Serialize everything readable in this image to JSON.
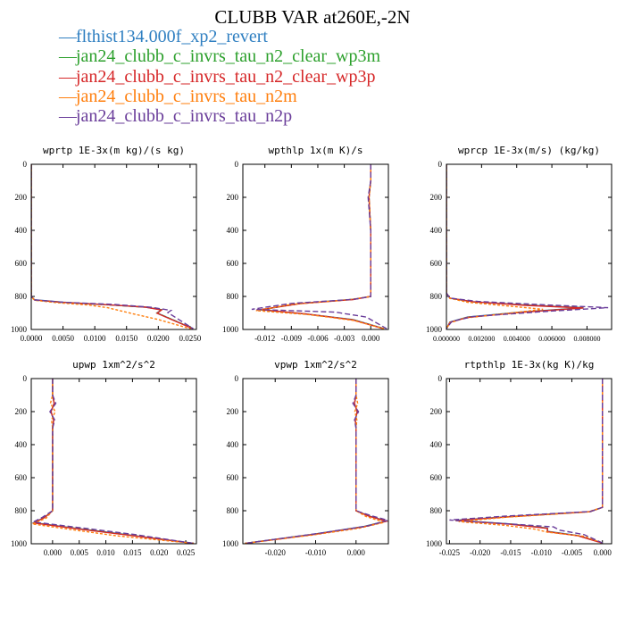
{
  "page": {
    "title": "CLUBB VAR at260E,-2N"
  },
  "legend": [
    {
      "label": "flthist134.000f_xp2_revert",
      "color": "#2f7fc1",
      "dash": "—"
    },
    {
      "label": "jan24_clubb_c_invrs_tau_n2_clear_wp3m",
      "color": "#2ca02c",
      "dash": "—"
    },
    {
      "label": "jan24_clubb_c_invrs_tau_n2_clear_wp3p",
      "color": "#d62728",
      "dash": "—"
    },
    {
      "label": "jan24_clubb_c_invrs_tau_n2m",
      "color": "#ff7f0e",
      "dash": "—"
    },
    {
      "label": "jan24_clubb_c_invrs_tau_n2p",
      "color": "#6a3d9a",
      "dash": "—"
    }
  ],
  "chart_data": [
    {
      "type": "line",
      "title": "wprtp   1E-3x(m kg)/(s kg)",
      "xlim": [
        0,
        0.026
      ],
      "ylim": [
        1000,
        0
      ],
      "xticks": [
        0,
        0.005,
        0.01,
        0.015,
        0.02,
        0.025
      ],
      "xtick_labels": [
        "0.0000",
        "0.0050",
        "0.0100",
        "0.0150",
        "0.0200",
        "0.0250"
      ],
      "yticks": [
        0,
        200,
        400,
        600,
        800,
        1000
      ],
      "series": [
        {
          "x": [
            0,
            0,
            0,
            0,
            0.0005,
            0.005,
            0.012,
            0.018,
            0.0205,
            0.0198,
            0.0255
          ],
          "y": [
            0,
            400,
            700,
            800,
            820,
            835,
            850,
            865,
            880,
            900,
            995
          ]
        },
        {
          "x": [
            0,
            0,
            0,
            0,
            0.0005,
            0.005,
            0.012,
            0.0185,
            0.0205,
            0.0198,
            0.0255
          ],
          "y": [
            0,
            400,
            700,
            800,
            822,
            836,
            851,
            866,
            881,
            900,
            995
          ]
        },
        {
          "x": [
            0,
            0,
            0,
            0,
            0.0005,
            0.005,
            0.012,
            0.018,
            0.0205,
            0.0198,
            0.0255
          ],
          "y": [
            0,
            400,
            700,
            800,
            821,
            836,
            850,
            865,
            882,
            902,
            996
          ]
        },
        {
          "x": [
            0,
            0,
            0,
            0,
            0.0005,
            0.004,
            0.009,
            0.012,
            0.016,
            0.02,
            0.025
          ],
          "y": [
            0,
            400,
            700,
            800,
            823,
            838,
            852,
            868,
            905,
            940,
            995
          ]
        },
        {
          "x": [
            0,
            0,
            0,
            0,
            0.0005,
            0.005,
            0.013,
            0.019,
            0.022,
            0.0215,
            0.0255
          ],
          "y": [
            0,
            400,
            700,
            800,
            821,
            835,
            848,
            866,
            885,
            898,
            995
          ]
        }
      ]
    },
    {
      "type": "line",
      "title": "wpthlp   1x(m K)/s",
      "xlim": [
        -0.0145,
        0.002
      ],
      "ylim": [
        1000,
        0
      ],
      "xticks": [
        -0.012,
        -0.009,
        -0.006,
        -0.003,
        0
      ],
      "xtick_labels": [
        "-0.012",
        "-0.009",
        "-0.006",
        "-0.003",
        "0.000"
      ],
      "yticks": [
        0,
        200,
        400,
        600,
        800,
        1000
      ],
      "series": [
        {
          "x": [
            0.0,
            0.0,
            -0.0002,
            0.0,
            0.0,
            -0.002,
            -0.008,
            -0.0125,
            -0.0075,
            -0.002,
            0.0015
          ],
          "y": [
            0,
            100,
            200,
            400,
            800,
            818,
            842,
            880,
            905,
            940,
            995
          ]
        },
        {
          "x": [
            0.0,
            0.0,
            -0.0002,
            0.0,
            0.0,
            -0.002,
            -0.008,
            -0.0125,
            -0.0075,
            -0.002,
            0.0015
          ],
          "y": [
            0,
            100,
            200,
            400,
            800,
            818,
            843,
            881,
            906,
            941,
            995
          ]
        },
        {
          "x": [
            0.0,
            0.0,
            -0.0002,
            0.0,
            0.0,
            -0.002,
            -0.008,
            -0.0125,
            -0.0075,
            -0.002,
            0.0015
          ],
          "y": [
            0,
            100,
            200,
            400,
            800,
            819,
            843,
            880,
            905,
            942,
            996
          ]
        },
        {
          "x": [
            0.0,
            0.0,
            -0.0002,
            0.0,
            0.0,
            -0.0025,
            -0.009,
            -0.013,
            -0.007,
            -0.002,
            0.0015
          ],
          "y": [
            0,
            100,
            200,
            400,
            800,
            820,
            848,
            886,
            910,
            945,
            995
          ]
        },
        {
          "x": [
            0.0,
            0.0,
            -0.0003,
            0.0,
            0.0,
            -0.002,
            -0.009,
            -0.0135,
            -0.004,
            -0.0005,
            0.0018
          ],
          "y": [
            0,
            100,
            200,
            400,
            800,
            818,
            842,
            878,
            895,
            925,
            995
          ]
        }
      ]
    },
    {
      "type": "line",
      "title": "wprcp   1E-3x(m/s) (kg/kg)",
      "xlim": [
        0,
        0.0094
      ],
      "ylim": [
        1000,
        0
      ],
      "xticks": [
        0,
        0.002,
        0.004,
        0.006,
        0.008
      ],
      "xtick_labels": [
        "0.000000",
        "0.002000",
        "0.004000",
        "0.006000",
        "0.008000"
      ],
      "yticks": [
        0,
        200,
        400,
        600,
        800,
        1000
      ],
      "series": [
        {
          "x": [
            0,
            0,
            0,
            0.0002,
            0.0015,
            0.0045,
            0.0078,
            0.0042,
            0.0012,
            0.0002,
            0
          ],
          "y": [
            0,
            400,
            780,
            810,
            832,
            852,
            868,
            895,
            925,
            955,
            995
          ]
        },
        {
          "x": [
            0,
            0,
            0,
            0.0002,
            0.0015,
            0.0045,
            0.0078,
            0.0042,
            0.0012,
            0.0002,
            0
          ],
          "y": [
            0,
            400,
            780,
            811,
            833,
            853,
            869,
            896,
            926,
            956,
            995
          ]
        },
        {
          "x": [
            0,
            0,
            0,
            0.0002,
            0.0015,
            0.0045,
            0.0078,
            0.0042,
            0.0012,
            0.0002,
            0
          ],
          "y": [
            0,
            400,
            780,
            810,
            832,
            854,
            870,
            897,
            927,
            957,
            996
          ]
        },
        {
          "x": [
            0,
            0,
            0,
            0.0002,
            0.0012,
            0.0035,
            0.0055,
            0.0033,
            0.001,
            0.0002,
            0
          ],
          "y": [
            0,
            400,
            780,
            812,
            835,
            858,
            878,
            905,
            932,
            960,
            995
          ]
        },
        {
          "x": [
            0,
            0,
            0,
            0.0002,
            0.0018,
            0.0055,
            0.0092,
            0.0055,
            0.0015,
            0.0003,
            0
          ],
          "y": [
            0,
            400,
            780,
            810,
            830,
            850,
            868,
            892,
            922,
            952,
            995
          ]
        }
      ]
    },
    {
      "type": "line",
      "title": "upwp   1xm^2/s^2",
      "xlim": [
        -0.004,
        0.027
      ],
      "ylim": [
        1000,
        0
      ],
      "xticks": [
        0,
        0.005,
        0.01,
        0.015,
        0.02,
        0.025
      ],
      "xtick_labels": [
        "0.000",
        "0.005",
        "0.010",
        "0.015",
        "0.020",
        "0.025"
      ],
      "yticks": [
        0,
        200,
        400,
        600,
        800,
        1000
      ],
      "series": [
        {
          "x": [
            0,
            0,
            0.0003,
            -0.0003,
            0.0002,
            0,
            0,
            -0.0015,
            -0.0035,
            0.004,
            0.014,
            0.0265
          ],
          "y": [
            0,
            100,
            150,
            200,
            250,
            300,
            800,
            840,
            872,
            905,
            945,
            998
          ]
        },
        {
          "x": [
            0,
            0,
            0.0003,
            -0.0003,
            0.0002,
            0,
            0,
            -0.0015,
            -0.0035,
            0.004,
            0.014,
            0.0265
          ],
          "y": [
            0,
            100,
            150,
            200,
            250,
            300,
            800,
            841,
            873,
            906,
            946,
            998
          ]
        },
        {
          "x": [
            0,
            0,
            0.0003,
            -0.0003,
            0.0002,
            0,
            0,
            -0.0015,
            -0.0035,
            0.004,
            0.014,
            0.0265
          ],
          "y": [
            0,
            100,
            150,
            200,
            250,
            300,
            800,
            841,
            874,
            907,
            947,
            998
          ]
        },
        {
          "x": [
            0,
            0,
            -0.0004,
            0.0005,
            -0.0002,
            0,
            0,
            -0.0012,
            -0.0038,
            0.003,
            0.012,
            0.0265
          ],
          "y": [
            0,
            100,
            150,
            200,
            250,
            300,
            800,
            845,
            880,
            912,
            952,
            998
          ]
        },
        {
          "x": [
            0,
            0,
            0.0006,
            -0.0005,
            0.0004,
            0,
            0,
            -0.0018,
            -0.0036,
            0.005,
            0.015,
            0.0265
          ],
          "y": [
            0,
            100,
            150,
            200,
            250,
            300,
            800,
            838,
            868,
            902,
            942,
            998
          ]
        }
      ]
    },
    {
      "type": "line",
      "title": "vpwp   1xm^2/s^2",
      "xlim": [
        -0.028,
        0.008
      ],
      "ylim": [
        1000,
        0
      ],
      "xticks": [
        -0.02,
        -0.01,
        0
      ],
      "xtick_labels": [
        "-0.020",
        "-0.010",
        "0.000"
      ],
      "yticks": [
        0,
        200,
        400,
        600,
        800,
        1000
      ],
      "series": [
        {
          "x": [
            0,
            0,
            -0.0004,
            0.0003,
            -0.0002,
            0,
            0,
            0.003,
            0.0075,
            0.002,
            -0.01,
            -0.0275
          ],
          "y": [
            0,
            100,
            150,
            200,
            250,
            300,
            800,
            830,
            862,
            895,
            940,
            998
          ]
        },
        {
          "x": [
            0,
            0,
            -0.0004,
            0.0003,
            -0.0002,
            0,
            0,
            0.003,
            0.0075,
            0.002,
            -0.01,
            -0.0275
          ],
          "y": [
            0,
            100,
            150,
            200,
            250,
            300,
            800,
            831,
            863,
            896,
            941,
            998
          ]
        },
        {
          "x": [
            0,
            0,
            -0.0004,
            0.0003,
            -0.0002,
            0,
            0,
            0.003,
            0.0075,
            0.002,
            -0.01,
            -0.0275
          ],
          "y": [
            0,
            100,
            150,
            200,
            250,
            300,
            800,
            832,
            864,
            897,
            942,
            998
          ]
        },
        {
          "x": [
            0,
            0,
            0.0004,
            -0.0003,
            0.0002,
            0,
            0,
            0.0025,
            0.007,
            0.001,
            -0.011,
            -0.0275
          ],
          "y": [
            0,
            100,
            150,
            200,
            250,
            300,
            800,
            835,
            870,
            905,
            948,
            998
          ]
        },
        {
          "x": [
            0,
            0,
            -0.0008,
            0.0006,
            -0.0004,
            0,
            0,
            0.0035,
            0.0078,
            0.003,
            -0.009,
            -0.0275
          ],
          "y": [
            0,
            100,
            150,
            200,
            250,
            300,
            800,
            828,
            858,
            892,
            936,
            998
          ]
        }
      ]
    },
    {
      "type": "line",
      "title": "rtpthlp   1E-3x(kg K)/kg",
      "xlim": [
        -0.0255,
        0.0015
      ],
      "ylim": [
        1000,
        0
      ],
      "xticks": [
        -0.025,
        -0.02,
        -0.015,
        -0.01,
        -0.005,
        0
      ],
      "xtick_labels": [
        "-0.025",
        "-0.020",
        "-0.015",
        "-0.010",
        "-0.005",
        "0.000"
      ],
      "yticks": [
        0,
        200,
        400,
        600,
        800,
        1000
      ],
      "series": [
        {
          "x": [
            0,
            0,
            0,
            -0.002,
            -0.015,
            -0.024,
            -0.015,
            -0.009,
            -0.009,
            -0.004,
            0
          ],
          "y": [
            0,
            400,
            780,
            805,
            835,
            858,
            880,
            905,
            925,
            950,
            995
          ]
        },
        {
          "x": [
            0,
            0,
            0,
            -0.002,
            -0.015,
            -0.024,
            -0.015,
            -0.009,
            -0.009,
            -0.004,
            0
          ],
          "y": [
            0,
            400,
            780,
            806,
            836,
            859,
            881,
            906,
            926,
            951,
            995
          ]
        },
        {
          "x": [
            0,
            0,
            0,
            -0.002,
            -0.015,
            -0.024,
            -0.015,
            -0.009,
            -0.009,
            -0.004,
            0
          ],
          "y": [
            0,
            400,
            780,
            806,
            836,
            860,
            882,
            907,
            927,
            952,
            996
          ]
        },
        {
          "x": [
            0,
            0,
            0,
            -0.0025,
            -0.016,
            -0.0235,
            -0.016,
            -0.011,
            -0.009,
            -0.003,
            0
          ],
          "y": [
            0,
            400,
            780,
            808,
            840,
            866,
            888,
            912,
            930,
            955,
            995
          ]
        },
        {
          "x": [
            0,
            0,
            0,
            -0.002,
            -0.016,
            -0.025,
            -0.016,
            -0.008,
            -0.007,
            -0.003,
            0
          ],
          "y": [
            0,
            400,
            780,
            805,
            833,
            856,
            878,
            898,
            918,
            945,
            995
          ]
        }
      ]
    }
  ]
}
